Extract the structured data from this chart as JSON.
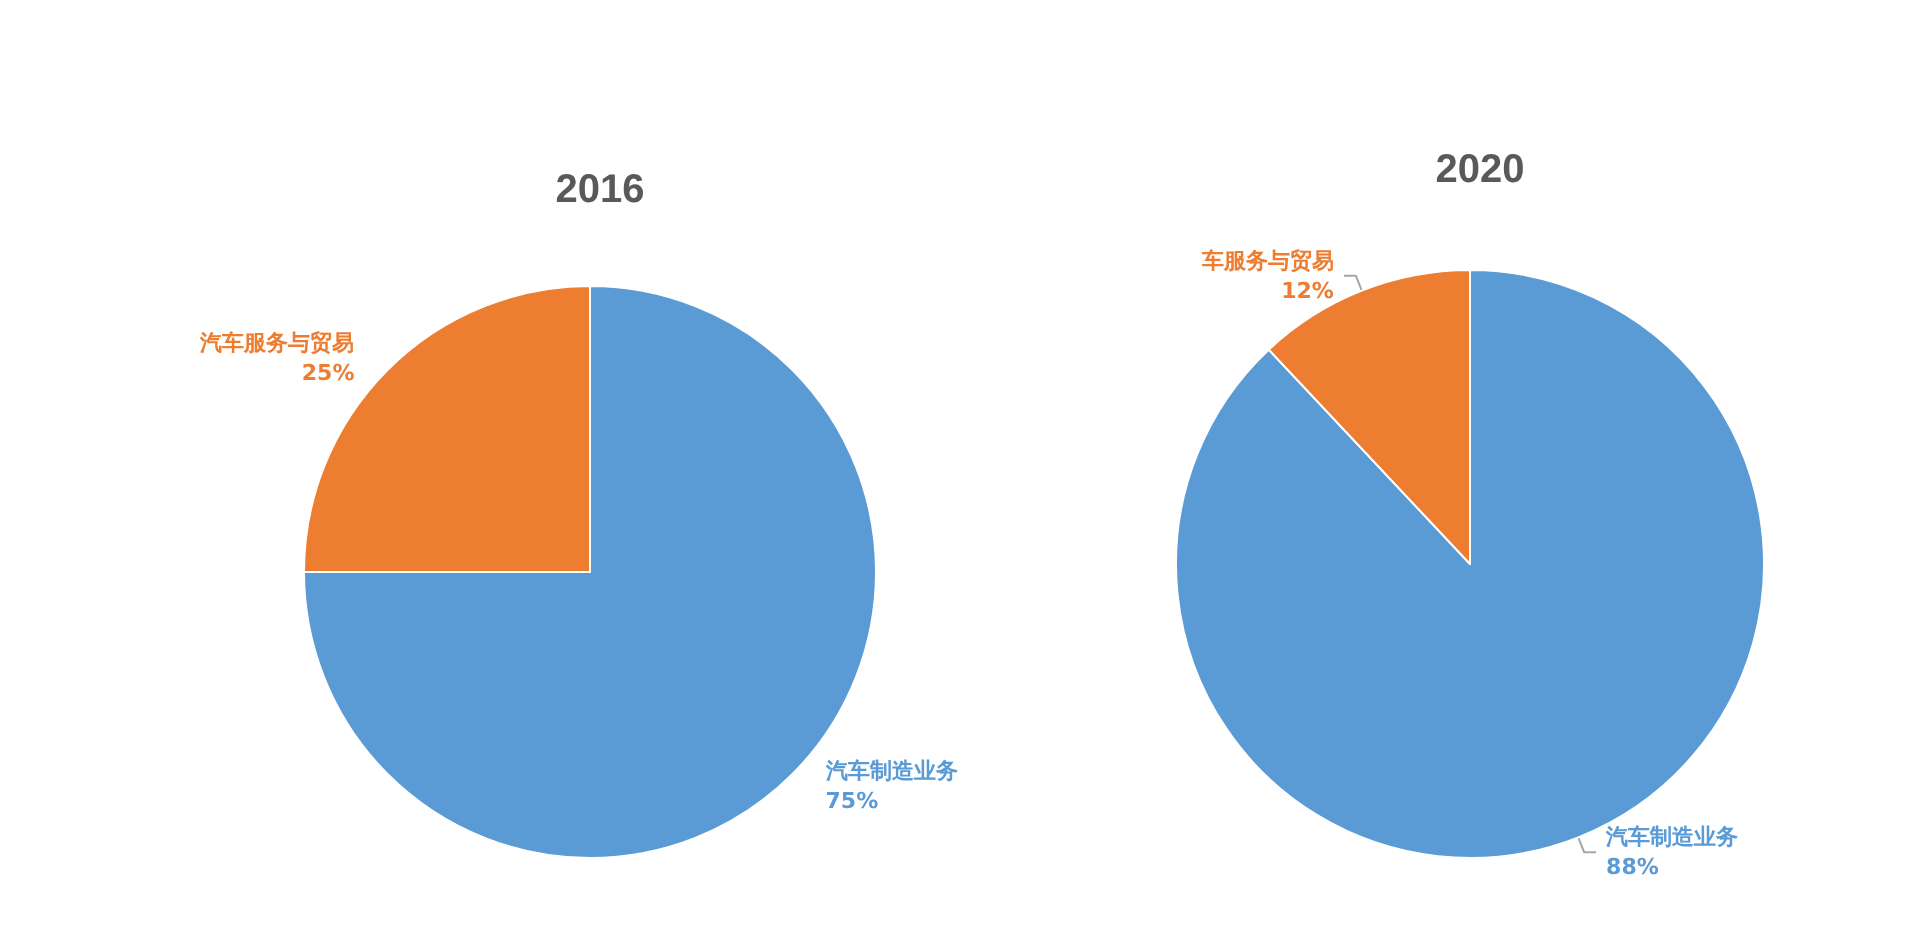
{
  "chart_data": [
    {
      "type": "pie",
      "title": "2016",
      "categories": [
        "汽车制造业务",
        "汽车服务与贸易"
      ],
      "values": [
        75,
        25
      ],
      "value_labels": [
        "75%",
        "25%"
      ],
      "colors": [
        "#5b9bd5",
        "#ed7d31"
      ],
      "legend": false
    },
    {
      "type": "pie",
      "title": "2020",
      "categories": [
        "汽车制造业务",
        "车服务与贸易"
      ],
      "values": [
        88,
        12
      ],
      "value_labels": [
        "88%",
        "12%"
      ],
      "colors": [
        "#5b9bd5",
        "#ed7d31"
      ],
      "legend": false
    }
  ]
}
